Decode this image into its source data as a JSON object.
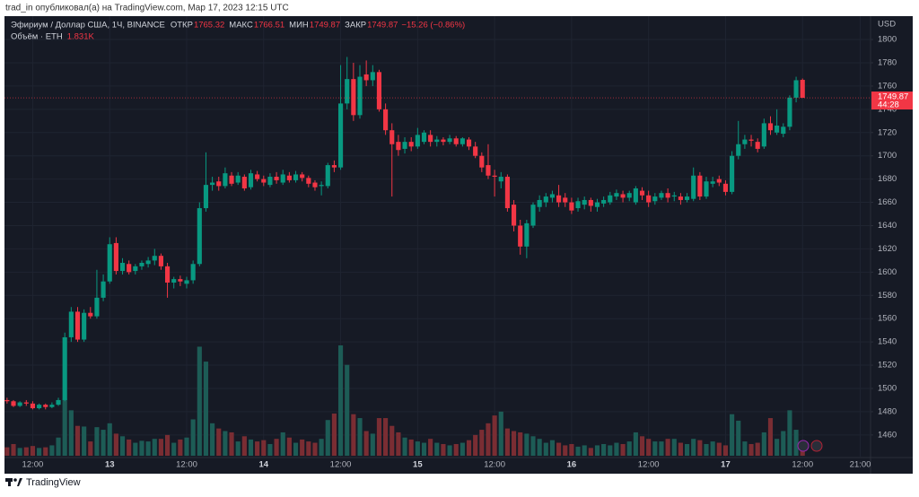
{
  "header": {
    "byline": "trad_in опубликовал(а) на TradingView.com, Мар 17, 2023 12:15 UTC"
  },
  "footer": {
    "brand": "TradingView"
  },
  "chart_data": {
    "type": "candlestick",
    "legend": {
      "symbol": "Эфириум / Доллар США, 1Ч, BINANCE",
      "open_label": "ОТКР",
      "high_label": "МАКС",
      "low_label": "МИН",
      "close_label": "ЗАКР",
      "change": "−15.26 (−0.86%)",
      "volume_label": "Объём · ETH",
      "volume_value": "1.831K"
    },
    "currency": "USD",
    "countdown": "44:28",
    "up_color": "#089981",
    "down_color": "#f23645",
    "volume_up_color": "#1d5c56",
    "volume_down_color": "#7a2d33",
    "x": [
      8,
      9,
      10,
      11,
      12,
      13,
      14,
      15,
      16,
      17,
      18,
      19,
      20,
      21,
      22,
      23,
      24,
      25,
      26,
      27,
      28,
      29,
      30,
      31,
      32,
      33,
      34,
      35,
      36,
      37,
      38,
      39,
      40,
      41,
      42,
      43,
      44,
      45,
      46,
      47,
      48,
      49,
      50,
      51,
      52,
      53,
      54,
      55,
      56,
      57,
      58,
      59,
      60,
      61,
      62,
      63,
      64,
      65,
      66,
      67,
      68,
      69,
      70,
      71,
      72,
      73,
      74,
      75,
      76,
      77,
      78,
      79,
      80,
      81,
      82,
      83,
      84,
      85,
      86,
      87,
      88,
      89,
      90,
      91,
      92,
      93,
      94,
      95,
      96,
      97,
      98,
      99,
      100,
      101,
      102,
      103,
      104,
      105,
      106,
      107,
      108,
      109,
      110,
      111,
      112,
      113,
      114,
      115,
      116,
      117,
      118,
      119,
      120,
      121,
      122,
      123,
      124,
      125,
      126,
      127,
      128,
      129,
      130,
      131,
      132
    ],
    "open": [
      1490,
      1489,
      1485,
      1488,
      1487,
      1483,
      1486,
      1484,
      1486,
      1490,
      1544,
      1566,
      1542,
      1565,
      1562,
      1578,
      1592,
      1625,
      1601,
      1607,
      1601,
      1605,
      1607,
      1610,
      1614,
      1605,
      1591,
      1594,
      1590,
      1593,
      1607,
      1655,
      1675,
      1678,
      1674,
      1683,
      1677,
      1682,
      1673,
      1684,
      1680,
      1675,
      1682,
      1677,
      1683,
      1679,
      1684,
      1681,
      1677,
      1674,
      1674,
      1692,
      1690,
      1745,
      1766,
      1735,
      1770,
      1765,
      1772,
      1740,
      1722,
      1712,
      1706,
      1712,
      1708,
      1712,
      1718,
      1712,
      1714,
      1712,
      1715,
      1710,
      1714,
      1708,
      1700,
      1692,
      1683,
      1678,
      1682,
      1658,
      1640,
      1622,
      1640,
      1656,
      1660,
      1664,
      1666,
      1664,
      1660,
      1655,
      1658,
      1662,
      1656,
      1659,
      1660,
      1665,
      1667,
      1664,
      1660,
      1670,
      1666,
      1661,
      1664,
      1668,
      1665,
      1665,
      1662,
      1663,
      1683,
      1665,
      1676,
      1680,
      1676,
      1669,
      1700,
      1710,
      1714,
      1712,
      1708,
      1728,
      1720,
      1719,
      1725,
      1750,
      1765.32
    ],
    "high": [
      1492,
      1490,
      1489,
      1490,
      1489,
      1487,
      1487,
      1488,
      1492,
      1548,
      1570,
      1570,
      1568,
      1570,
      1602,
      1598,
      1630,
      1630,
      1612,
      1610,
      1607,
      1610,
      1613,
      1620,
      1616,
      1608,
      1596,
      1597,
      1596,
      1610,
      1660,
      1703,
      1682,
      1682,
      1690,
      1686,
      1686,
      1684,
      1688,
      1687,
      1683,
      1685,
      1686,
      1688,
      1686,
      1687,
      1686,
      1683,
      1679,
      1678,
      1694,
      1696,
      1778,
      1785,
      1780,
      1778,
      1782,
      1778,
      1774,
      1745,
      1728,
      1718,
      1716,
      1716,
      1724,
      1722,
      1722,
      1717,
      1716,
      1718,
      1717,
      1716,
      1716,
      1712,
      1703,
      1710,
      1688,
      1686,
      1684,
      1662,
      1645,
      1645,
      1660,
      1666,
      1668,
      1670,
      1675,
      1668,
      1664,
      1664,
      1665,
      1664,
      1663,
      1665,
      1669,
      1671,
      1670,
      1670,
      1674,
      1673,
      1670,
      1668,
      1670,
      1672,
      1669,
      1668,
      1668,
      1690,
      1686,
      1682,
      1682,
      1683,
      1679,
      1704,
      1730,
      1718,
      1718,
      1715,
      1732,
      1734,
      1740,
      1728,
      1752,
      1768,
      1766.51
    ],
    "low": [
      1487,
      1484,
      1484,
      1485,
      1482,
      1482,
      1482,
      1483,
      1485,
      1489,
      1540,
      1540,
      1540,
      1560,
      1560,
      1575,
      1590,
      1598,
      1598,
      1598,
      1598,
      1602,
      1604,
      1606,
      1602,
      1578,
      1586,
      1588,
      1586,
      1590,
      1605,
      1652,
      1670,
      1670,
      1672,
      1674,
      1675,
      1670,
      1671,
      1678,
      1674,
      1673,
      1676,
      1675,
      1677,
      1677,
      1678,
      1673,
      1670,
      1666,
      1672,
      1686,
      1688,
      1740,
      1730,
      1732,
      1760,
      1760,
      1738,
      1718,
      1665,
      1700,
      1702,
      1704,
      1706,
      1710,
      1708,
      1708,
      1709,
      1710,
      1708,
      1708,
      1705,
      1698,
      1686,
      1680,
      1665,
      1672,
      1652,
      1635,
      1615,
      1612,
      1638,
      1652,
      1656,
      1660,
      1656,
      1656,
      1650,
      1652,
      1654,
      1652,
      1652,
      1656,
      1658,
      1662,
      1660,
      1661,
      1658,
      1662,
      1656,
      1658,
      1662,
      1660,
      1661,
      1658,
      1660,
      1661,
      1662,
      1663,
      1673,
      1674,
      1666,
      1667,
      1697,
      1706,
      1708,
      1703,
      1706,
      1718,
      1718,
      1716,
      1722,
      1746,
      1749.87
    ],
    "close": [
      1489,
      1485,
      1488,
      1487,
      1483,
      1486,
      1484,
      1486,
      1490,
      1544,
      1566,
      1542,
      1565,
      1562,
      1578,
      1592,
      1624,
      1601,
      1608,
      1600,
      1605,
      1608,
      1610,
      1614,
      1605,
      1591,
      1594,
      1592,
      1593,
      1607,
      1655,
      1675,
      1677,
      1674,
      1685,
      1676,
      1683,
      1672,
      1685,
      1680,
      1677,
      1682,
      1679,
      1684,
      1679,
      1684,
      1681,
      1676,
      1673,
      1675,
      1692,
      1690,
      1745,
      1766,
      1735,
      1768,
      1765,
      1772,
      1740,
      1722,
      1710,
      1705,
      1712,
      1708,
      1718,
      1720,
      1712,
      1714,
      1712,
      1715,
      1710,
      1715,
      1708,
      1700,
      1690,
      1683,
      1682,
      1682,
      1655,
      1640,
      1622,
      1642,
      1658,
      1662,
      1665,
      1667,
      1660,
      1660,
      1653,
      1661,
      1662,
      1657,
      1660,
      1662,
      1666,
      1668,
      1664,
      1668,
      1672,
      1666,
      1660,
      1665,
      1668,
      1664,
      1666,
      1662,
      1665,
      1683,
      1665,
      1678,
      1678,
      1677,
      1669,
      1700,
      1710,
      1714,
      1713,
      1706,
      1728,
      1722,
      1726,
      1725,
      1750,
      1765,
      1749.87
    ],
    "volume": [
      1.3,
      1.8,
      1.2,
      1.3,
      1.5,
      1.2,
      1.3,
      1.6,
      2.8,
      8.8,
      7.0,
      4.6,
      4.5,
      2.2,
      4.4,
      4.0,
      5.0,
      3.4,
      3.0,
      2.5,
      2.0,
      2.3,
      2.2,
      2.6,
      2.6,
      3.2,
      2.0,
      2.5,
      2.8,
      5.6,
      16.8,
      14.5,
      5.0,
      4.2,
      3.8,
      3.6,
      2.2,
      3.0,
      2.5,
      2.2,
      2.4,
      1.8,
      2.6,
      3.6,
      2.8,
      2.0,
      2.5,
      2.2,
      2.0,
      2.6,
      5.5,
      6.5,
      17.0,
      14.0,
      6.4,
      5.8,
      3.8,
      3.4,
      5.8,
      5.8,
      4.6,
      3.6,
      2.8,
      2.5,
      2.2,
      2.0,
      2.6,
      2.0,
      1.8,
      1.6,
      1.8,
      2.0,
      2.4,
      3.2,
      4.0,
      5.0,
      6.2,
      6.8,
      4.2,
      3.8,
      3.6,
      3.4,
      3.0,
      2.6,
      2.0,
      2.4,
      2.0,
      1.6,
      1.8,
      1.4,
      1.6,
      1.2,
      1.6,
      1.8,
      1.6,
      2.0,
      1.8,
      2.2,
      3.6,
      3.0,
      2.6,
      2.2,
      2.2,
      2.6,
      2.6,
      2.0,
      1.8,
      2.6,
      2.4,
      1.8,
      2.2,
      2.0,
      1.6,
      6.4,
      5.4,
      2.2,
      1.8,
      2.0,
      3.6,
      5.8,
      2.6,
      3.8,
      7.0,
      4.0,
      1.831
    ],
    "xlim": [
      7.6,
      142.6
    ],
    "xticks": [
      {
        "value": 12,
        "label": "12:00"
      },
      {
        "value": 24,
        "label": "13"
      },
      {
        "value": 36,
        "label": "12:00"
      },
      {
        "value": 48,
        "label": "14"
      },
      {
        "value": 60,
        "label": "12:00"
      },
      {
        "value": 72,
        "label": "15"
      },
      {
        "value": 84,
        "label": "12:00"
      },
      {
        "value": 96,
        "label": "16"
      },
      {
        "value": 108,
        "label": "12:00"
      },
      {
        "value": 120,
        "label": "17"
      },
      {
        "value": 132,
        "label": "12:00"
      },
      {
        "value": 141,
        "label": "21:00"
      }
    ],
    "ylim": [
      1440.6,
      1820.1
    ],
    "yticks": [
      1460,
      1480,
      1500,
      1520,
      1540,
      1560,
      1580,
      1600,
      1620,
      1640,
      1660,
      1680,
      1700,
      1720,
      1740,
      1760,
      1780,
      1800
    ],
    "grid": true
  }
}
